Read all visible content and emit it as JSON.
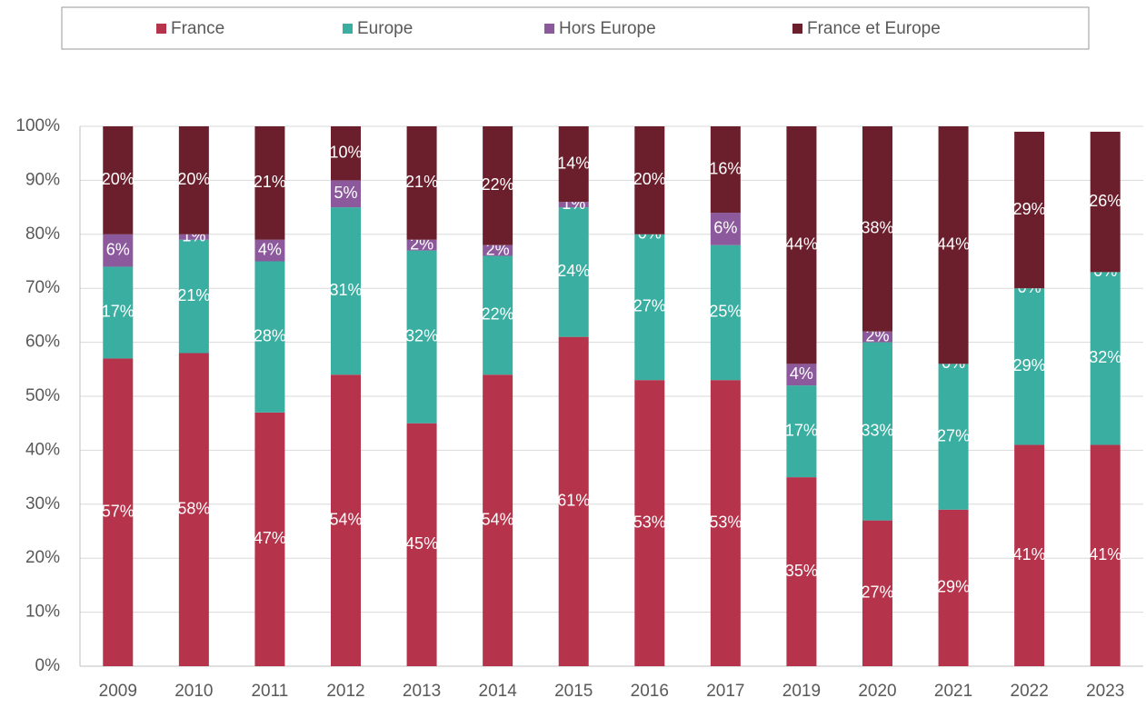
{
  "chart_data": {
    "type": "stacked_bar",
    "categories": [
      "2009",
      "2010",
      "2011",
      "2012",
      "2013",
      "2014",
      "2015",
      "2016",
      "2017",
      "2019",
      "2020",
      "2021",
      "2022",
      "2023"
    ],
    "series": [
      {
        "name": "France",
        "color": "#b5344c",
        "values": [
          57,
          58,
          47,
          54,
          45,
          54,
          61,
          53,
          53,
          35,
          27,
          29,
          41,
          41
        ],
        "value_labels": [
          "57%",
          "58%",
          "47%",
          "54%",
          "45%",
          "54%",
          "61%",
          "53%",
          "53%",
          "35%",
          "27%",
          "29%",
          "41%",
          "41%"
        ]
      },
      {
        "name": "Europe",
        "color": "#3aaea0",
        "values": [
          17,
          21,
          28,
          31,
          32,
          22,
          24,
          27,
          25,
          17,
          33,
          27,
          29,
          32
        ],
        "value_labels": [
          "17%",
          "21%",
          "28%",
          "31%",
          "32%",
          "22%",
          "24%",
          "27%",
          "25%",
          "17%",
          "33%",
          "27%",
          "29%",
          "32%"
        ]
      },
      {
        "name": "Hors Europe",
        "color": "#8c5a9c",
        "values": [
          6,
          1,
          4,
          5,
          2,
          2,
          1,
          0,
          6,
          4,
          2,
          0,
          0,
          0
        ],
        "value_labels": [
          "6%",
          "1%",
          "4%",
          "5%",
          "2%",
          "2%",
          "1%",
          "0%",
          "6%",
          "4%",
          "2%",
          "0%",
          "0%",
          "0%"
        ]
      },
      {
        "name": "France et Europe",
        "color": "#6b1f2c",
        "values": [
          20,
          20,
          21,
          10,
          21,
          22,
          14,
          20,
          16,
          44,
          38,
          44,
          29,
          26
        ],
        "value_labels": [
          "20%",
          "20%",
          "21%",
          "10%",
          "21%",
          "22%",
          "14%",
          "20%",
          "16%",
          "44%",
          "38%",
          "44%",
          "29%",
          "26%"
        ]
      }
    ],
    "ylim": [
      0,
      100
    ],
    "yticks": [
      {
        "value": 0,
        "label": "0%"
      },
      {
        "value": 10,
        "label": "10%"
      },
      {
        "value": 20,
        "label": "20%"
      },
      {
        "value": 30,
        "label": "30%"
      },
      {
        "value": 40,
        "label": "40%"
      },
      {
        "value": 50,
        "label": "50%"
      },
      {
        "value": 60,
        "label": "60%"
      },
      {
        "value": 70,
        "label": "70%"
      },
      {
        "value": 80,
        "label": "80%"
      },
      {
        "value": 90,
        "label": "90%"
      },
      {
        "value": 100,
        "label": "100%"
      }
    ],
    "grid": true,
    "legend": "top"
  }
}
